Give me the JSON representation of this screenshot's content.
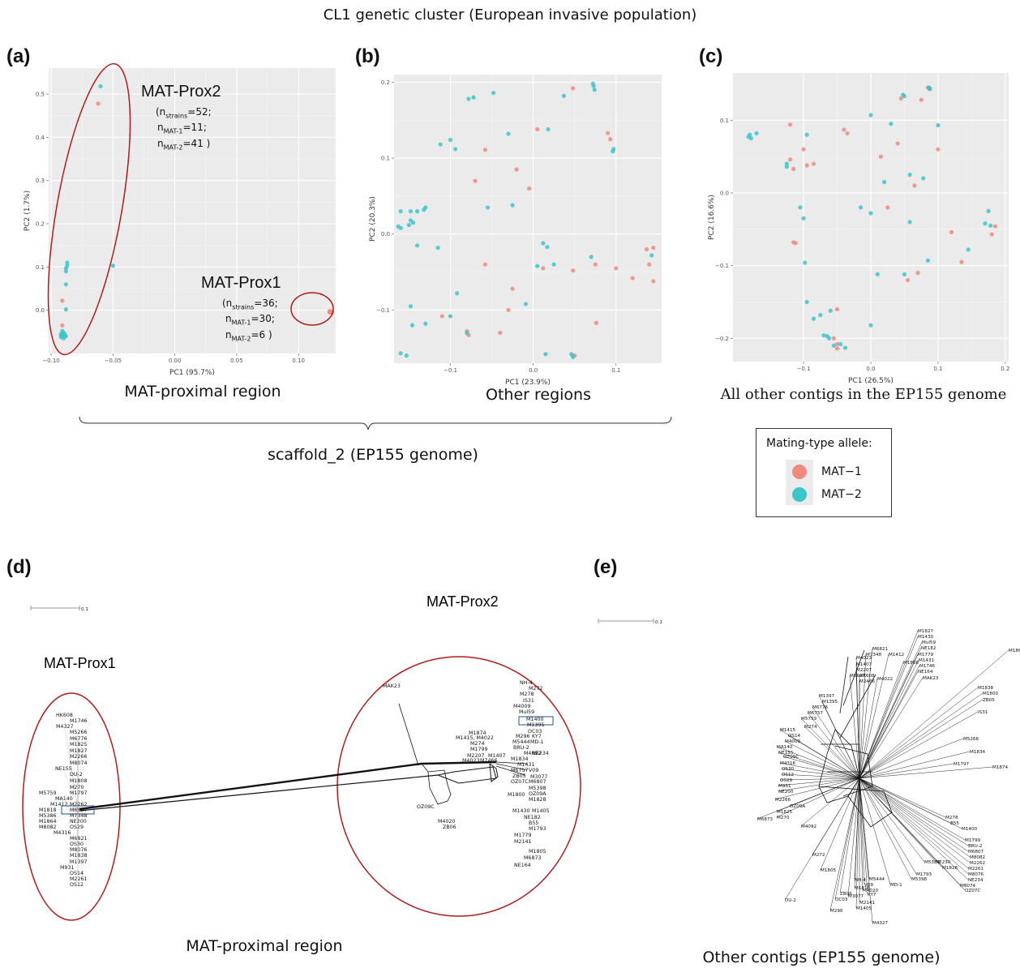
{
  "figure": {
    "title": "CL1 genetic cluster (European invasive population)",
    "scaffold_label": "scaffold_2 (EP155 genome)",
    "panels": {
      "a": {
        "letter": "(a)",
        "caption": "MAT-proximal region"
      },
      "b": {
        "letter": "(b)",
        "caption": "Other regions"
      },
      "c": {
        "letter": "(c)",
        "caption": "All other contigs in the EP155 genome"
      },
      "d": {
        "letter": "(d)",
        "caption": "MAT-proximal region"
      },
      "e": {
        "letter": "(e)",
        "caption": "Other contigs (EP155 genome)"
      }
    },
    "legend": {
      "title": "Mating-type allele:",
      "items": [
        {
          "label": "MAT−1",
          "color": "#F08A80"
        },
        {
          "label": "MAT−2",
          "color": "#3CC6CB"
        }
      ]
    },
    "annotations_a": {
      "prox2": {
        "title": "MAT-Prox2",
        "line1": "(n",
        "sub1": "strains",
        "val1": "=52;",
        "line2": "n",
        "sub2": "MAT-1",
        "val2": "=11;",
        "line3": "n",
        "sub3": "MAT-2",
        "val3": "=41 )"
      },
      "prox1": {
        "title": "MAT-Prox1",
        "line1": "(n",
        "sub1": "strains",
        "val1": "=36;",
        "line2": "n",
        "sub2": "MAT-1",
        "val2": "=30;",
        "line3": "n",
        "sub3": "MAT-2",
        "val3": "=6 )"
      }
    },
    "network_d": {
      "scale": "0.1",
      "prox1_label": "MAT-Prox1",
      "prox2_label": "MAT-Prox2",
      "prox1_leaves": [
        "HK608",
        "M1746",
        "M4327",
        "M5266",
        "M6776",
        "M1825",
        "M1827",
        "M2266",
        "M8074",
        "NE155",
        "DU-2",
        "M1808",
        "M270",
        "M5759",
        "M1797",
        "MA140",
        "M1412",
        "M2262",
        "M1818",
        "M6697",
        "M5386",
        "M7348",
        "M1864",
        "NE200",
        "M8082",
        "OS29",
        "M4316",
        "M6821",
        "OS30",
        "M8076",
        "M1838",
        "M1397",
        "M931",
        "OS14",
        "M2261",
        "OS12"
      ],
      "prox2_leaves": [
        "NH-4",
        "M272",
        "M278",
        "IS31",
        "M4009",
        "Mul59",
        "M1400",
        "M1395",
        "OC03",
        "M296",
        "KY7",
        "M5444",
        "MD-1",
        "BRU-2",
        "M4092",
        "M1834",
        "NE234",
        "M1431",
        "M6757",
        "V09",
        "ZB05",
        "M3077",
        "OZ07C",
        "M6807",
        "M1800",
        "M5398",
        "OZ09A",
        "M1828",
        "M1430",
        "M1405",
        "NE182",
        "B55",
        "M1793",
        "M1779",
        "M2141",
        "M1805",
        "M6873",
        "NE164",
        "M1874",
        "M1415, M4022",
        "M274",
        "M1799",
        "M2207",
        "M1407",
        "M4023",
        "M7466",
        "MAK23",
        "OZ09C",
        "M4020",
        "ZB06"
      ]
    },
    "network_e": {
      "scale": "0.1",
      "leaves": [
        "M1864",
        "M1827",
        "M1430",
        "Mul59",
        "NE182",
        "M1779",
        "M1431",
        "M1746",
        "NE164",
        "M6821",
        "M7348",
        "M1412",
        "M4023",
        "M1407",
        "M2207",
        "M1808",
        "M6697",
        "HK608",
        "M2466",
        "M4022",
        "MAK23",
        "M1838",
        "M1800",
        "ZB05",
        "IS31",
        "M1397",
        "M1395",
        "M6776",
        "M6757",
        "M5759",
        "M274",
        "M1415",
        "OS14",
        "M4009",
        "MA140",
        "NE155",
        "OZ09C",
        "M4316",
        "OS30",
        "OS12",
        "OS29",
        "M931",
        "NE200",
        "M2266",
        "OZ09A",
        "M1825",
        "M270",
        "M6873",
        "M4092",
        "M5266",
        "M1834",
        "M1797",
        "M1874",
        "M278",
        "B55",
        "M1400",
        "M1799",
        "BRU-2",
        "M6807",
        "M8082",
        "M2262",
        "M2261",
        "M8076",
        "NE234",
        "M8074",
        "OZ07C",
        "NE230",
        "M1828",
        "M1793",
        "M5398",
        "M5386",
        "M272",
        "M1805",
        "NH-4",
        "M1818",
        "ZB06",
        "OC03",
        "M296",
        "M5444",
        "V09",
        "M4020",
        "M3077",
        "KY7",
        "M2141",
        "M1405",
        "MD-1",
        "M4327",
        "DU-2"
      ]
    }
  },
  "chart_data": [
    {
      "type": "scatter",
      "panel": "a",
      "xlabel": "PC1 (95.7%)",
      "ylabel": "PC2 (1.7%)",
      "xlim": [
        -0.102,
        0.13
      ],
      "ylim": [
        -0.1,
        0.56
      ],
      "xticks": [
        -0.1,
        -0.05,
        0.0,
        0.05,
        0.1
      ],
      "xticklabels": [
        "−0.10",
        "−0.05",
        "0.00",
        "0.05",
        "0.10"
      ],
      "yticks": [
        0.0,
        0.1,
        0.2,
        0.3,
        0.4,
        0.5
      ],
      "yticklabels": [
        "0.0",
        "0.1",
        "0.2",
        "0.3",
        "0.4",
        "0.5"
      ],
      "grid": true,
      "series": [
        {
          "name": "MAT−1",
          "color": "#F08A80",
          "points": [
            [
              -0.062,
              0.478
            ],
            [
              -0.091,
              0.022
            ],
            [
              -0.091,
              -0.035
            ],
            [
              -0.092,
              -0.058
            ],
            [
              0.126,
              -0.003
            ],
            [
              0.127,
              -0.006
            ],
            [
              0.125,
              -0.002
            ],
            [
              0.126,
              -0.004
            ],
            [
              0.127,
              -0.003
            ],
            [
              0.125,
              -0.005
            ]
          ]
        },
        {
          "name": "MAT−2",
          "color": "#3CC6CB",
          "points": [
            [
              -0.06,
              0.518
            ],
            [
              -0.05,
              0.103
            ],
            [
              -0.087,
              0.11
            ],
            [
              -0.087,
              0.103
            ],
            [
              -0.088,
              0.097
            ],
            [
              -0.088,
              0.09
            ],
            [
              -0.088,
              0.06
            ],
            [
              -0.088,
              0.002
            ],
            [
              -0.091,
              -0.048
            ],
            [
              -0.09,
              -0.052
            ],
            [
              -0.089,
              -0.055
            ],
            [
              -0.091,
              -0.058
            ],
            [
              -0.092,
              -0.062
            ],
            [
              -0.09,
              -0.065
            ],
            [
              -0.089,
              -0.06
            ],
            [
              -0.092,
              -0.055
            ],
            [
              -0.09,
              -0.057
            ],
            [
              -0.088,
              -0.06
            ]
          ]
        }
      ]
    },
    {
      "type": "scatter",
      "panel": "b",
      "xlabel": "PC1 (23.9%)",
      "ylabel": "PC2 (20.3%)",
      "xlim": [
        -0.168,
        0.155
      ],
      "ylim": [
        -0.17,
        0.21
      ],
      "xticks": [
        -0.1,
        0.0,
        0.1
      ],
      "xticklabels": [
        "−0.1",
        "0.0",
        "0.1"
      ],
      "yticks": [
        -0.1,
        0.0,
        0.1,
        0.2
      ],
      "yticklabels": [
        "−0.1",
        "0.0",
        "0.1",
        "0.2"
      ],
      "grid": true,
      "series": [
        {
          "name": "MAT−1",
          "color": "#F08A80",
          "points": [
            [
              0.048,
              0.192
            ],
            [
              0.005,
              0.138
            ],
            [
              0.09,
              0.133
            ],
            [
              0.093,
              0.125
            ],
            [
              -0.058,
              0.111
            ],
            [
              -0.02,
              0.085
            ],
            [
              -0.07,
              0.07
            ],
            [
              -0.005,
              0.06
            ],
            [
              0.145,
              -0.018
            ],
            [
              0.137,
              -0.02
            ],
            [
              0.14,
              -0.04
            ],
            [
              0.145,
              -0.062
            ],
            [
              0.12,
              -0.058
            ],
            [
              0.1,
              -0.045
            ],
            [
              0.075,
              -0.04
            ],
            [
              0.048,
              -0.048
            ],
            [
              0.012,
              -0.045
            ],
            [
              -0.058,
              -0.04
            ],
            [
              -0.025,
              -0.072
            ],
            [
              -0.03,
              -0.1
            ],
            [
              -0.04,
              -0.13
            ],
            [
              -0.08,
              -0.128
            ],
            [
              -0.078,
              -0.133
            ],
            [
              -0.11,
              -0.108
            ],
            [
              0.076,
              -0.117
            ],
            [
              0.05,
              -0.16
            ],
            [
              0.048,
              -0.16
            ]
          ]
        },
        {
          "name": "MAT−2",
          "color": "#3CC6CB",
          "points": [
            [
              0.072,
              0.198
            ],
            [
              0.073,
              0.195
            ],
            [
              0.074,
              0.19
            ],
            [
              0.037,
              0.182
            ],
            [
              -0.048,
              0.186
            ],
            [
              -0.072,
              0.18
            ],
            [
              -0.078,
              0.178
            ],
            [
              -0.1,
              0.124
            ],
            [
              -0.112,
              0.118
            ],
            [
              -0.094,
              0.112
            ],
            [
              -0.03,
              0.132
            ],
            [
              0.018,
              0.138
            ],
            [
              0.097,
              0.112
            ],
            [
              0.096,
              0.109
            ],
            [
              -0.16,
              0.03
            ],
            [
              -0.148,
              0.03
            ],
            [
              -0.132,
              0.032
            ],
            [
              -0.13,
              0.035
            ],
            [
              -0.14,
              0.03
            ],
            [
              -0.148,
              0.018
            ],
            [
              -0.16,
              0.008
            ],
            [
              -0.163,
              0.01
            ],
            [
              -0.15,
              0.012
            ],
            [
              -0.145,
              0.015
            ],
            [
              -0.14,
              -0.015
            ],
            [
              -0.115,
              -0.018
            ],
            [
              -0.055,
              0.035
            ],
            [
              -0.025,
              0.038
            ],
            [
              0.012,
              -0.012
            ],
            [
              0.017,
              -0.017
            ],
            [
              0.07,
              -0.03
            ],
            [
              0.025,
              -0.04
            ],
            [
              0.005,
              -0.042
            ],
            [
              -0.092,
              -0.078
            ],
            [
              -0.1,
              -0.108
            ],
            [
              -0.148,
              -0.095
            ],
            [
              -0.146,
              -0.12
            ],
            [
              -0.13,
              -0.118
            ],
            [
              -0.08,
              -0.13
            ],
            [
              -0.009,
              -0.092
            ],
            [
              0.143,
              -0.028
            ],
            [
              0.046,
              -0.158
            ],
            [
              0.048,
              -0.162
            ],
            [
              -0.16,
              -0.157
            ],
            [
              -0.153,
              -0.16
            ],
            [
              0.015,
              -0.158
            ]
          ]
        }
      ]
    },
    {
      "type": "scatter",
      "panel": "c",
      "xlabel": "PC1 (26.5%)",
      "ylabel": "PC2 (16.6%)",
      "xlim": [
        -0.205,
        0.205
      ],
      "ylim": [
        -0.232,
        0.165
      ],
      "xticks": [
        -0.1,
        0.0,
        0.1,
        0.2
      ],
      "xticklabels": [
        "−0.1",
        "0.0",
        "0.1",
        "0.2"
      ],
      "yticks": [
        -0.2,
        -0.1,
        0.0,
        0.1
      ],
      "yticklabels": [
        "−0.2",
        "−0.1",
        "0.0",
        "0.1"
      ],
      "grid": true,
      "series": [
        {
          "name": "MAT−1",
          "color": "#F08A80",
          "points": [
            [
              0.085,
              0.145
            ],
            [
              0.087,
              0.143
            ],
            [
              0.088,
              0.144
            ],
            [
              0.075,
              0.128
            ],
            [
              0.045,
              0.13
            ],
            [
              -0.04,
              0.087
            ],
            [
              -0.035,
              0.082
            ],
            [
              -0.12,
              0.094
            ],
            [
              -0.1,
              0.06
            ],
            [
              -0.12,
              0.046
            ],
            [
              -0.115,
              0.033
            ],
            [
              -0.095,
              0.038
            ],
            [
              -0.085,
              0.04
            ],
            [
              0.015,
              0.05
            ],
            [
              0.04,
              0.068
            ],
            [
              0.1,
              0.06
            ],
            [
              0.065,
              0.01
            ],
            [
              0.025,
              -0.02
            ],
            [
              0.12,
              -0.054
            ],
            [
              0.135,
              -0.095
            ],
            [
              0.18,
              -0.057
            ],
            [
              0.185,
              -0.046
            ],
            [
              -0.115,
              -0.068
            ],
            [
              -0.112,
              -0.069
            ],
            [
              0.07,
              -0.11
            ],
            [
              0.055,
              -0.12
            ],
            [
              -0.05,
              -0.16
            ],
            [
              -0.055,
              -0.2
            ],
            [
              -0.05,
              -0.208
            ],
            [
              -0.05,
              -0.214
            ]
          ]
        },
        {
          "name": "MAT−2",
          "color": "#3CC6CB",
          "points": [
            [
              0.048,
              0.135
            ],
            [
              0.05,
              0.133
            ],
            [
              0.086,
              0.145
            ],
            [
              0.088,
              0.143
            ],
            [
              0.1,
              0.093
            ],
            [
              0.0,
              0.107
            ],
            [
              0.03,
              0.095
            ],
            [
              -0.095,
              0.08
            ],
            [
              -0.17,
              0.082
            ],
            [
              -0.18,
              0.08
            ],
            [
              -0.182,
              0.077
            ],
            [
              -0.178,
              0.075
            ],
            [
              -0.125,
              0.04
            ],
            [
              -0.125,
              0.036
            ],
            [
              -0.105,
              -0.02
            ],
            [
              -0.1,
              -0.035
            ],
            [
              0.058,
              0.025
            ],
            [
              0.078,
              0.02
            ],
            [
              0.02,
              0.015
            ],
            [
              -0.015,
              -0.02
            ],
            [
              0.0,
              -0.028
            ],
            [
              0.058,
              -0.04
            ],
            [
              0.175,
              -0.025
            ],
            [
              0.17,
              -0.042
            ],
            [
              0.178,
              -0.045
            ],
            [
              0.145,
              -0.078
            ],
            [
              -0.098,
              -0.096
            ],
            [
              0.085,
              -0.093
            ],
            [
              0.01,
              -0.112
            ],
            [
              0.05,
              -0.112
            ],
            [
              -0.095,
              -0.15
            ],
            [
              -0.085,
              -0.173
            ],
            [
              -0.075,
              -0.168
            ],
            [
              -0.06,
              -0.162
            ],
            [
              -0.065,
              -0.197
            ],
            [
              -0.062,
              -0.2
            ],
            [
              -0.07,
              -0.196
            ],
            [
              -0.055,
              -0.21
            ],
            [
              -0.045,
              -0.208
            ],
            [
              -0.038,
              -0.213
            ],
            [
              0.0,
              -0.182
            ]
          ]
        }
      ]
    }
  ]
}
